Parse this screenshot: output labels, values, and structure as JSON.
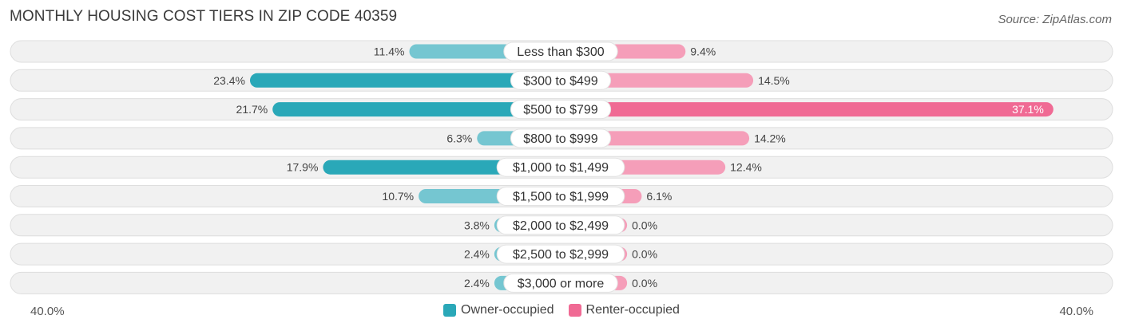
{
  "title": "MONTHLY HOUSING COST TIERS IN ZIP CODE 40359",
  "source": "Source: ZipAtlas.com",
  "chart_data": {
    "type": "bar",
    "orientation": "horizontal-diverging",
    "categories": [
      "Less than $300",
      "$300 to $499",
      "$500 to $799",
      "$800 to $999",
      "$1,000 to $1,499",
      "$1,500 to $1,999",
      "$2,000 to $2,499",
      "$2,500 to $2,999",
      "$3,000 or more"
    ],
    "series": [
      {
        "name": "Owner-occupied",
        "color": "#2aa8b8",
        "values": [
          11.4,
          23.4,
          21.7,
          6.3,
          17.9,
          10.7,
          3.8,
          2.4,
          2.4
        ]
      },
      {
        "name": "Renter-occupied",
        "color": "#f06a94",
        "values": [
          9.4,
          14.5,
          37.1,
          14.2,
          12.4,
          6.1,
          0.0,
          0.0,
          0.0
        ]
      }
    ],
    "axis_min_label": "40.0%",
    "axis_max_label": "40.0%",
    "xlim": [
      -40,
      40
    ],
    "min_display_value": 5.0,
    "legend_position": "bottom-center"
  }
}
